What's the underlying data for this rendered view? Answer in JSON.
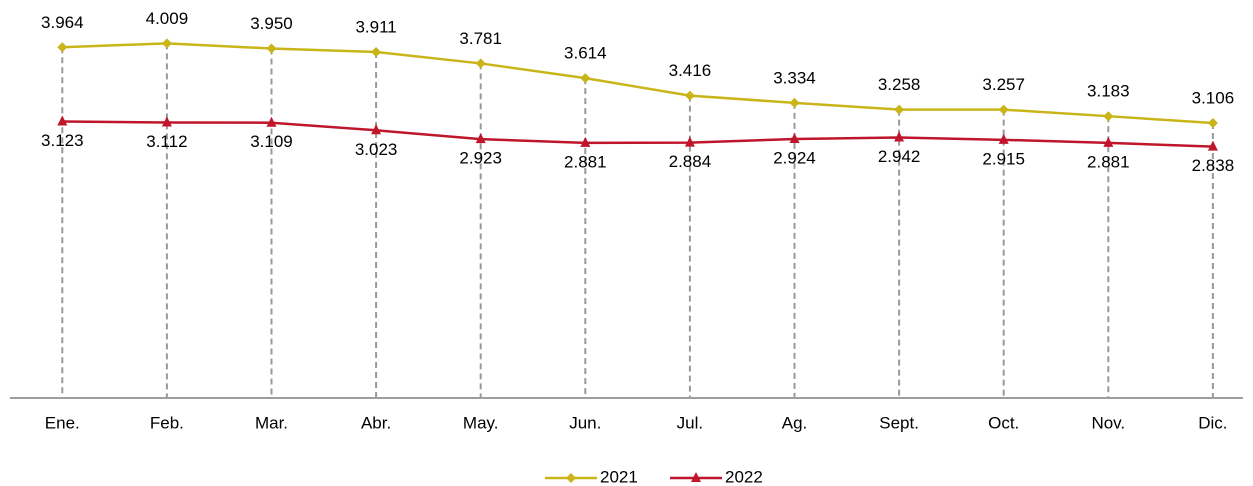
{
  "chart_data": {
    "type": "line",
    "categories": [
      "Ene.",
      "Feb.",
      "Mar.",
      "Abr.",
      "May.",
      "Jun.",
      "Jul.",
      "Ag.",
      "Sept.",
      "Oct.",
      "Nov.",
      "Dic."
    ],
    "series": [
      {
        "name": "2021",
        "color": "#c9b51a",
        "marker": "diamond",
        "label_position": "above",
        "values": [
          3.964,
          4.009,
          3.95,
          3.911,
          3.781,
          3.614,
          3.416,
          3.334,
          3.258,
          3.257,
          3.183,
          3.106
        ],
        "value_labels": [
          "3.964",
          "4.009",
          "3.950",
          "3.911",
          "3.781",
          "3.614",
          "3.416",
          "3.334",
          "3.258",
          "3.257",
          "3.183",
          "3.106"
        ]
      },
      {
        "name": "2022",
        "color": "#c0162b",
        "marker": "triangle",
        "label_position": "below",
        "values": [
          3.123,
          3.112,
          3.109,
          3.023,
          2.923,
          2.881,
          2.884,
          2.924,
          2.942,
          2.915,
          2.881,
          2.838
        ],
        "value_labels": [
          "3.123",
          "3.112",
          "3.109",
          "3.023",
          "2.923",
          "2.881",
          "2.884",
          "2.924",
          "2.942",
          "2.915",
          "2.881",
          "2.838"
        ]
      }
    ],
    "ylim": [
      0,
      4.5
    ],
    "drop_lines": true,
    "legend": "bottom"
  }
}
